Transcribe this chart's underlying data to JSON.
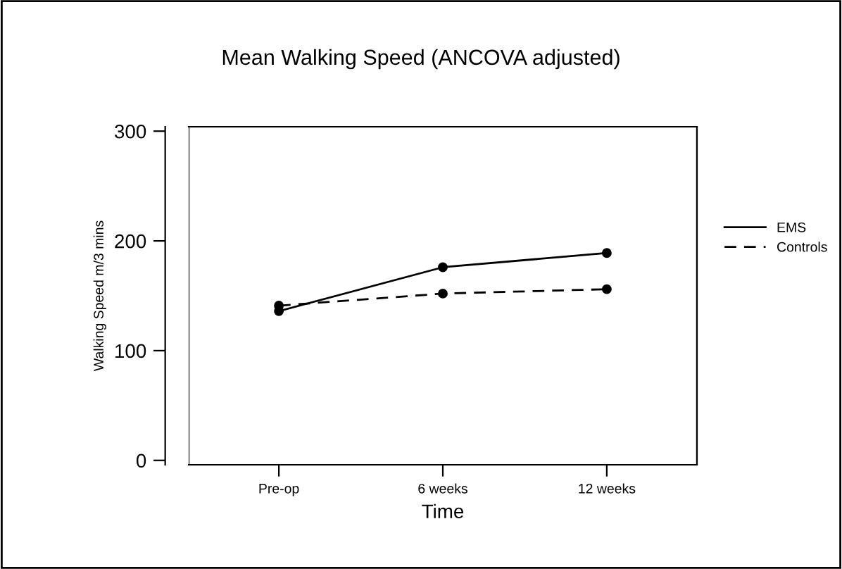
{
  "chart_data": {
    "type": "line",
    "title": "Mean Walking Speed (ANCOVA adjusted)",
    "xlabel": "Time",
    "ylabel": "Walking Speed m/3 mins",
    "categories": [
      "Pre-op",
      "6 weeks",
      "12 weeks"
    ],
    "series": [
      {
        "name": "EMS",
        "color": "#000000",
        "values": [
          136,
          176,
          189
        ],
        "line_style": "solid"
      },
      {
        "name": "Controls",
        "color": "#000000",
        "values": [
          141,
          152,
          156
        ],
        "line_style": "dashed"
      }
    ],
    "ylim": [
      -4,
      304
    ],
    "yticks": [
      0,
      100,
      200,
      300
    ],
    "marker": "circle",
    "legend": "right",
    "grid": false
  }
}
